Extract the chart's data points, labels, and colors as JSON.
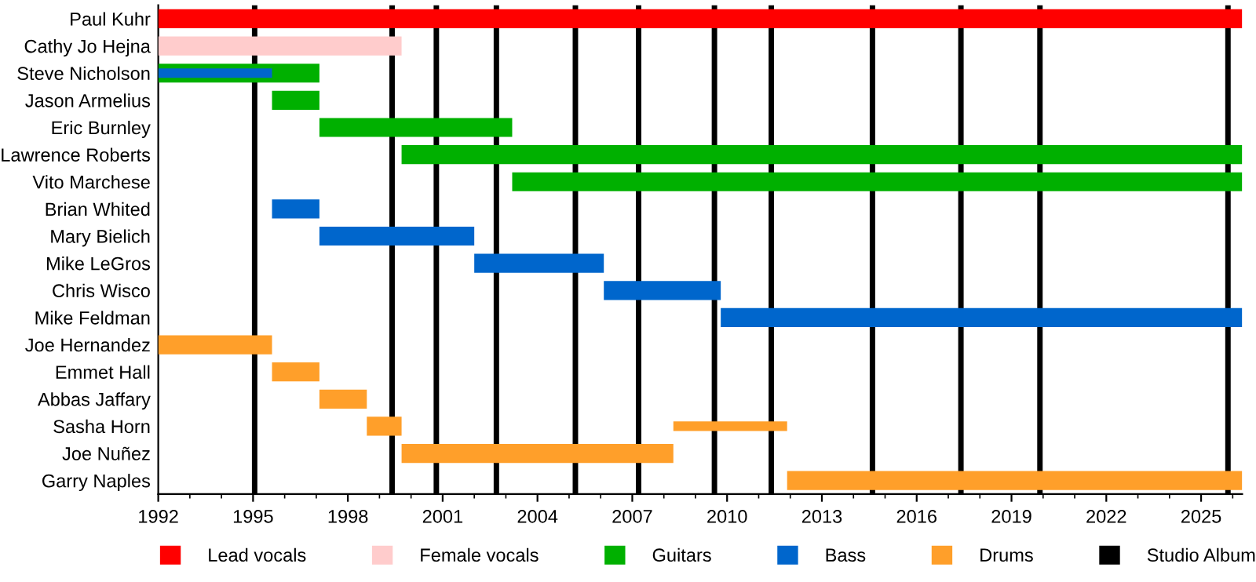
{
  "chart_data": {
    "type": "bar",
    "orientation": "horizontal",
    "categories": [
      "Paul Kuhr",
      "Cathy Jo Hejna",
      "Steve Nicholson",
      "Jason Armelius",
      "Eric Burnley",
      "Lawrence Roberts",
      "Vito Marchese",
      "Brian Whited",
      "Mary Bielich",
      "Mike LeGros",
      "Chris Wisco",
      "Mike Feldman",
      "Joe Hernandez",
      "Emmet Hall",
      "Abbas Jaffary",
      "Sasha Horn",
      "Joe Nuñez",
      "Garry Naples"
    ],
    "series": [
      {
        "name": "Lead vocals",
        "color": "#ff0000",
        "base": [
          1992,
          null,
          null,
          null,
          null,
          null,
          null,
          null,
          null,
          null,
          null,
          null,
          null,
          null,
          null,
          null,
          null,
          null
        ],
        "values": [
          34.3,
          null,
          null,
          null,
          null,
          null,
          null,
          null,
          null,
          null,
          null,
          null,
          null,
          null,
          null,
          null,
          null,
          null
        ]
      },
      {
        "name": "Female vocals",
        "color": "#ffcccc",
        "base": [
          null,
          1992,
          null,
          null,
          null,
          null,
          null,
          null,
          null,
          null,
          null,
          null,
          null,
          null,
          null,
          null,
          null,
          null
        ],
        "values": [
          null,
          7.7,
          null,
          null,
          null,
          null,
          null,
          null,
          null,
          null,
          null,
          null,
          null,
          null,
          null,
          null,
          null,
          null
        ]
      },
      {
        "name": "Guitars",
        "color": "#00b000",
        "base": [
          null,
          null,
          1992,
          1995.6,
          1997.1,
          1999.7,
          2003.2,
          null,
          null,
          null,
          null,
          null,
          null,
          null,
          null,
          null,
          null,
          null
        ],
        "values": [
          null,
          null,
          5.1,
          1.5,
          6.1,
          26.6,
          23.1,
          null,
          null,
          null,
          null,
          null,
          null,
          null,
          null,
          null,
          null,
          null
        ]
      },
      {
        "name": "Bass",
        "color": "#0066cc",
        "base": [
          null,
          null,
          1992,
          null,
          null,
          null,
          null,
          1995.6,
          1997.1,
          2002.0,
          2006.1,
          2009.8,
          null,
          null,
          null,
          null,
          null,
          null
        ],
        "values": [
          null,
          null,
          3.6,
          null,
          null,
          null,
          null,
          1.5,
          4.9,
          4.1,
          3.7,
          16.5,
          null,
          null,
          null,
          null,
          null,
          null
        ]
      },
      {
        "name": "Drums",
        "color": "#ff9f2a",
        "base": [
          null,
          null,
          null,
          null,
          null,
          null,
          null,
          null,
          null,
          null,
          null,
          null,
          1992,
          1995.6,
          1997.1,
          1998.6,
          1999.7,
          2011.9
        ],
        "values": [
          null,
          null,
          null,
          null,
          null,
          null,
          null,
          null,
          null,
          null,
          null,
          null,
          3.6,
          1.5,
          1.5,
          1.1,
          8.6,
          14.4
        ]
      },
      {
        "color": "#ff9f2a",
        "base": [
          null,
          null,
          null,
          null,
          null,
          null,
          null,
          null,
          null,
          null,
          null,
          null,
          null,
          null,
          null,
          2008.3,
          null,
          null
        ],
        "values": [
          null,
          null,
          null,
          null,
          null,
          null,
          null,
          null,
          null,
          null,
          null,
          null,
          null,
          null,
          null,
          3.6,
          null,
          null
        ]
      }
    ],
    "ref_lines": [
      {
        "axis": "x",
        "value": 1995.05,
        "label": "Studio Album",
        "color": "#000000"
      },
      {
        "axis": "x",
        "value": 1999.4,
        "color": "#000000"
      },
      {
        "axis": "x",
        "value": 2000.8,
        "color": "#000000"
      },
      {
        "axis": "x",
        "value": 2002.7,
        "color": "#000000"
      },
      {
        "axis": "x",
        "value": 2005.2,
        "color": "#000000"
      },
      {
        "axis": "x",
        "value": 2007.2,
        "color": "#000000"
      },
      {
        "axis": "x",
        "value": 2009.6,
        "color": "#000000"
      },
      {
        "axis": "x",
        "value": 2011.4,
        "color": "#000000"
      },
      {
        "axis": "x",
        "value": 2014.6,
        "color": "#000000"
      },
      {
        "axis": "x",
        "value": 2017.4,
        "color": "#000000"
      },
      {
        "axis": "x",
        "value": 2019.9,
        "color": "#000000"
      },
      {
        "axis": "x",
        "value": 2025.85,
        "color": "#000000"
      }
    ],
    "xlim": [
      1992,
      2026.3
    ],
    "xticks": [
      1992,
      1995,
      1998,
      2001,
      2004,
      2007,
      2010,
      2013,
      2016,
      2019,
      2022,
      2025
    ],
    "grid": false,
    "legend": "bottom"
  }
}
